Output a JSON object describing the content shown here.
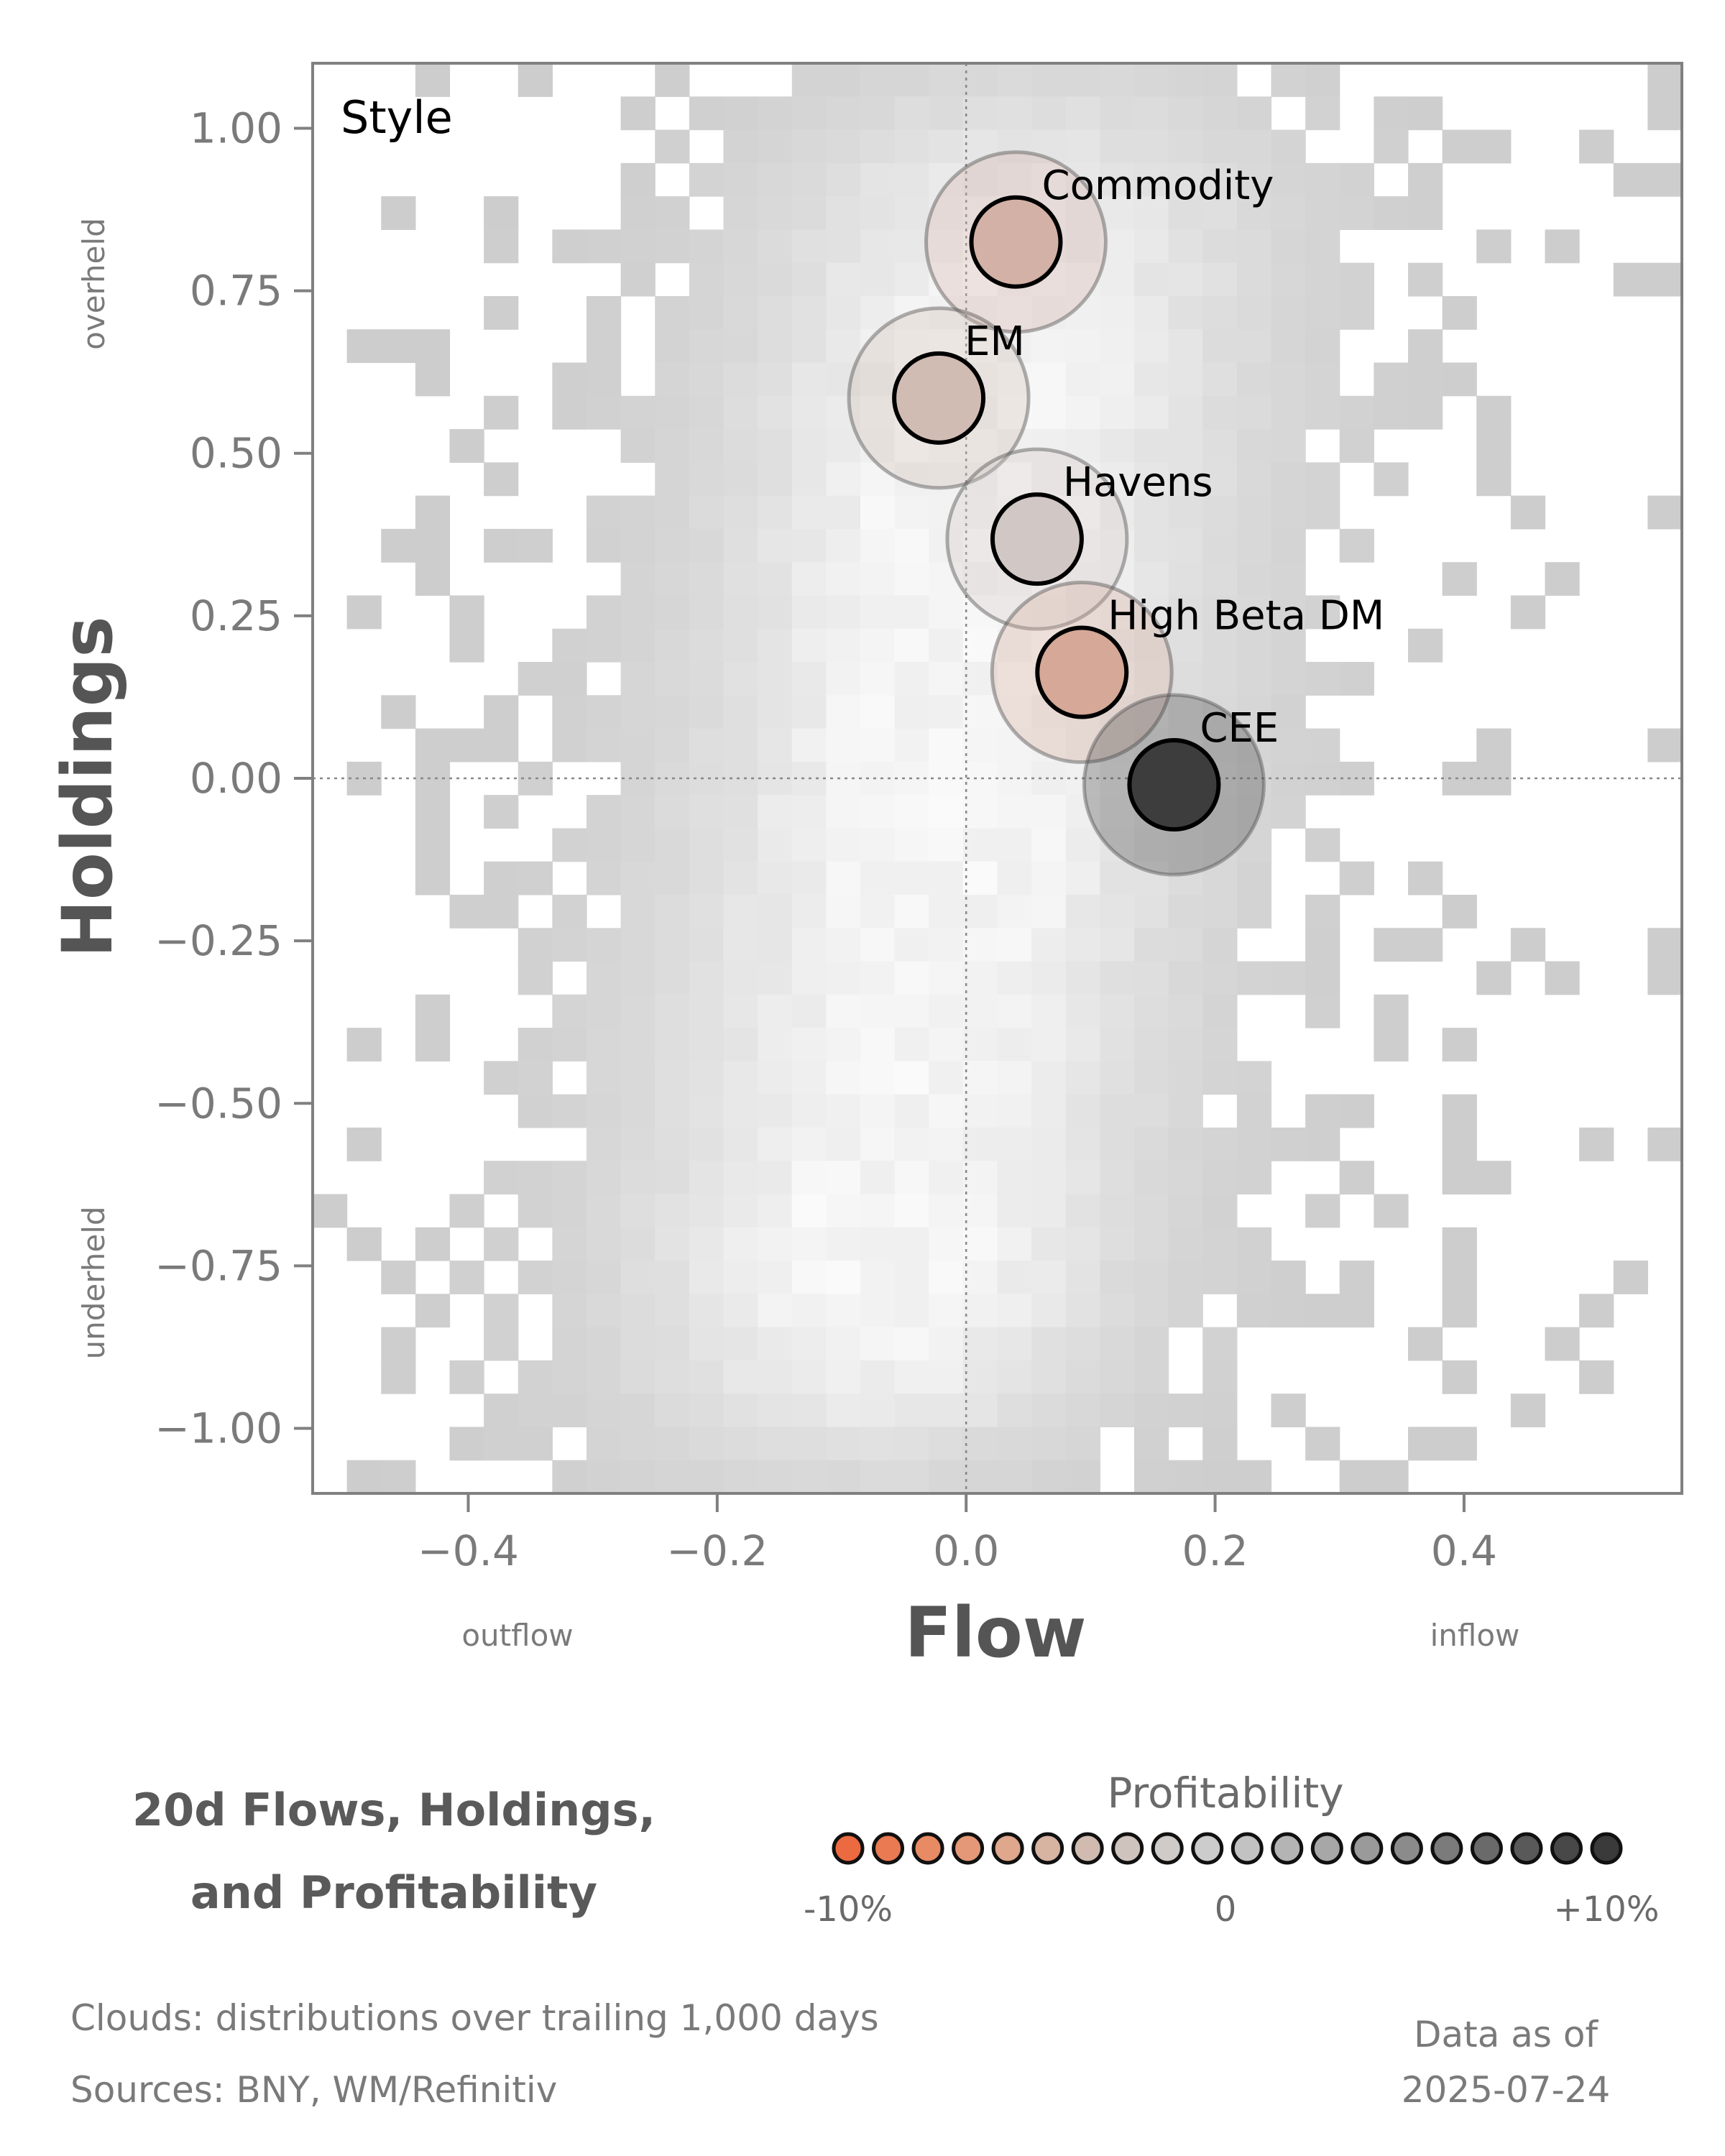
{
  "chart_data": {
    "type": "scatter",
    "title": "20d Flows, Holdings,",
    "title_line2": "and Profitability",
    "panel_label": "Style",
    "xlabel": "Flow",
    "ylabel": "Holdings",
    "x_low_label": "outflow",
    "x_high_label": "inflow",
    "y_high_label": "overheld",
    "y_low_label": "underheld",
    "xlim": [
      -0.525,
      0.575
    ],
    "ylim": [
      -1.1,
      1.1
    ],
    "xticks": [
      -0.4,
      -0.2,
      0.0,
      0.2,
      0.4
    ],
    "xtick_labels": [
      "−0.4",
      "−0.2",
      "0.0",
      "0.2",
      "0.4"
    ],
    "yticks": [
      1.0,
      0.75,
      0.5,
      0.25,
      0.0,
      -0.25,
      -0.5,
      -0.75,
      -1.0
    ],
    "ytick_labels": [
      "1.00",
      "0.75",
      "0.50",
      "0.25",
      "0.00",
      "−0.25",
      "−0.50",
      "−0.75",
      "−1.00"
    ],
    "grid": false,
    "reference_lines": {
      "x": 0.0,
      "y": 0.0
    },
    "background": "density cloud (grey heatmap)",
    "points": [
      {
        "name": "Commodity",
        "x": 0.04,
        "y": 0.825,
        "profitability": -3,
        "color": "#d3b1a6"
      },
      {
        "name": "EM",
        "x": -0.022,
        "y": 0.585,
        "profitability": -2,
        "color": "#d1bcb3"
      },
      {
        "name": "Havens",
        "x": 0.057,
        "y": 0.368,
        "profitability": 0,
        "color": "#d1c8c5"
      },
      {
        "name": "High Beta DM",
        "x": 0.093,
        "y": 0.163,
        "profitability": -5,
        "color": "#d5a898"
      },
      {
        "name": "CEE",
        "x": 0.167,
        "y": -0.01,
        "profitability": 10,
        "color": "#3d3d3d"
      }
    ],
    "legend": {
      "title": "Profitability",
      "min_label": "-10%",
      "mid_label": "0",
      "max_label": "+10%",
      "colors": [
        "#ec6a3f",
        "#ea7a52",
        "#e88a64",
        "#e49877",
        "#dfa78c",
        "#d7b3a2",
        "#d1bbb1",
        "#cfc3be",
        "#cfcbc9",
        "#cccccc",
        "#c2c2c2",
        "#b4b4b4",
        "#a7a7a7",
        "#9a9a9a",
        "#8b8b8b",
        "#7b7b7b",
        "#6a6a6a",
        "#595959",
        "#484848",
        "#3a3a3a"
      ]
    }
  },
  "footer": {
    "clouds_note": "Clouds:  distributions over trailing 1,000 days",
    "sources_note": "Sources:  BNY, WM/Refinitiv",
    "data_as_of_label": "Data as of",
    "data_as_of_date": "2025-07-24"
  }
}
